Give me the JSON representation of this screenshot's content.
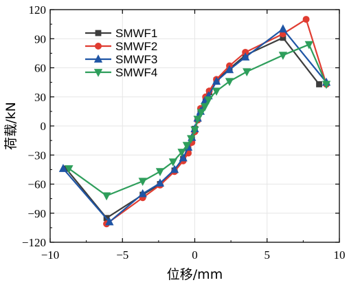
{
  "chart_data": {
    "type": "line",
    "xlabel": "位移/mm",
    "ylabel": "荷载/kN",
    "xlim": [
      -10,
      10
    ],
    "ylim": [
      -120,
      120
    ],
    "xticks": [
      -10,
      -5,
      0,
      5,
      10
    ],
    "yticks": [
      -120,
      -90,
      -60,
      -30,
      0,
      30,
      60,
      90,
      120
    ],
    "grid": true,
    "legend_position": "top-left",
    "series": [
      {
        "name": "SMWF1",
        "color": "#3d3d3d",
        "marker": "square",
        "points": [
          [
            -8.9,
            -44
          ],
          [
            -6.1,
            -95
          ],
          [
            -3.6,
            -71
          ],
          [
            -2.4,
            -60
          ],
          [
            -1.4,
            -46
          ],
          [
            -0.8,
            -34
          ],
          [
            -0.45,
            -24
          ],
          [
            -0.2,
            -14
          ],
          [
            0,
            -3
          ],
          [
            0.2,
            7
          ],
          [
            0.4,
            17
          ],
          [
            0.75,
            28
          ],
          [
            1.0,
            35
          ],
          [
            1.5,
            47
          ],
          [
            2.4,
            59
          ],
          [
            3.5,
            73
          ],
          [
            6.1,
            91
          ],
          [
            8.6,
            43
          ]
        ]
      },
      {
        "name": "SMWF2",
        "color": "#e03c31",
        "marker": "circle",
        "points": [
          [
            -6.1,
            -101
          ],
          [
            -3.6,
            -74
          ],
          [
            -2.4,
            -61
          ],
          [
            -1.4,
            -47
          ],
          [
            -0.8,
            -36
          ],
          [
            -0.45,
            -28
          ],
          [
            -0.2,
            -17
          ],
          [
            0,
            -6
          ],
          [
            0.2,
            6
          ],
          [
            0.4,
            18
          ],
          [
            0.75,
            30
          ],
          [
            1.0,
            36
          ],
          [
            1.5,
            48
          ],
          [
            2.4,
            62
          ],
          [
            3.5,
            76
          ],
          [
            6.1,
            95
          ],
          [
            7.7,
            110
          ],
          [
            9.1,
            43
          ]
        ]
      },
      {
        "name": "SMWF3",
        "color": "#1f55a5",
        "marker": "triangle-up",
        "points": [
          [
            -9.1,
            -44
          ],
          [
            -5.9,
            -99
          ],
          [
            -3.6,
            -70
          ],
          [
            -2.4,
            -59
          ],
          [
            -1.4,
            -45
          ],
          [
            -0.8,
            -33
          ],
          [
            -0.45,
            -22
          ],
          [
            -0.2,
            -12
          ],
          [
            0,
            -3
          ],
          [
            0.2,
            8
          ],
          [
            0.4,
            15
          ],
          [
            0.7,
            26
          ],
          [
            0.95,
            31
          ],
          [
            1.5,
            46
          ],
          [
            2.4,
            58
          ],
          [
            3.5,
            71
          ],
          [
            6.1,
            100
          ],
          [
            9.1,
            45
          ]
        ]
      },
      {
        "name": "SMWF4",
        "color": "#2e9e5b",
        "marker": "triangle-down",
        "points": [
          [
            -8.7,
            -44
          ],
          [
            -6.1,
            -72
          ],
          [
            -3.6,
            -57
          ],
          [
            -2.4,
            -47
          ],
          [
            -1.5,
            -37
          ],
          [
            -0.9,
            -27
          ],
          [
            -0.55,
            -20
          ],
          [
            -0.25,
            -13
          ],
          [
            0,
            -4
          ],
          [
            0.2,
            7
          ],
          [
            0.45,
            14
          ],
          [
            0.7,
            20
          ],
          [
            0.95,
            27
          ],
          [
            1.5,
            36
          ],
          [
            2.4,
            46
          ],
          [
            3.6,
            56
          ],
          [
            6.1,
            73
          ],
          [
            7.9,
            84
          ],
          [
            9.1,
            43
          ]
        ]
      }
    ]
  }
}
